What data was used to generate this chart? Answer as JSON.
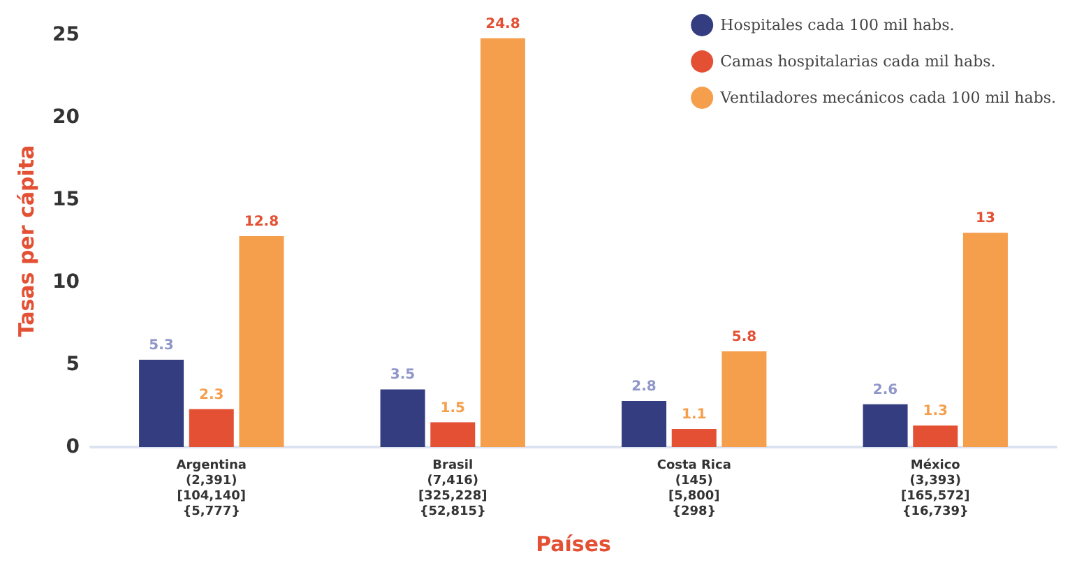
{
  "chart_data": {
    "type": "bar",
    "xlabel": "Países",
    "ylabel": "Tasas per cápita",
    "categories": [
      "Argentina\n(2,391)\n[104,140]\n{5,777}",
      "Brasil\n(7,416)\n[325,228]\n{52,815}",
      "Costa Rica\n(145)\n[5,800]\n{298}",
      "México\n(3,393)\n[165,572]\n{16,739}"
    ],
    "series": [
      {
        "name": "Hospitales cada 100 mil habs.",
        "color": "#333d80",
        "values": [
          5.3,
          3.5,
          2.8,
          2.6
        ]
      },
      {
        "name": "Camas hospitalarias cada mil habs.",
        "color": "#e35033",
        "values": [
          2.3,
          1.5,
          1.1,
          1.3
        ]
      },
      {
        "name": "Ventiladores mecánicos cada 100 mil habs.",
        "color": "#f59e4c",
        "values": [
          12.8,
          24.8,
          5.8,
          13
        ]
      }
    ],
    "ylim": [
      0,
      25
    ],
    "yticks": [
      0,
      5,
      10,
      15,
      20,
      25
    ],
    "grid": false,
    "legend": "top right",
    "data_labels": true
  }
}
